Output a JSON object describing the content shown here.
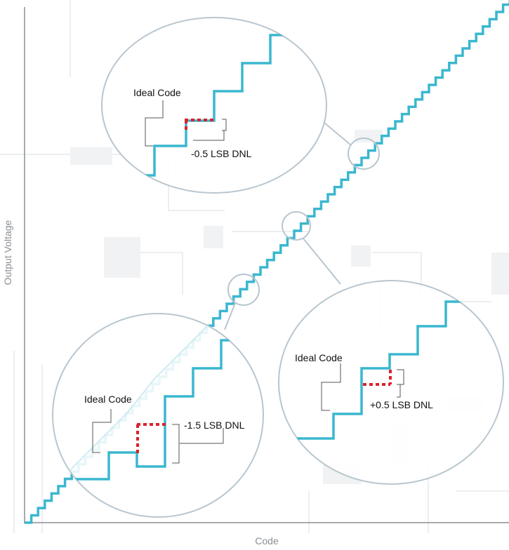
{
  "axes": {
    "x_label": "Code",
    "y_label": "Output Voltage"
  },
  "callouts": [
    {
      "label": "Ideal Code",
      "dnl": "-0.5 LSB DNL"
    },
    {
      "label": "Ideal Code",
      "dnl": "-1.5 LSB DNL"
    },
    {
      "label": "Ideal Code",
      "dnl": "+0.5 LSB DNL"
    }
  ]
}
